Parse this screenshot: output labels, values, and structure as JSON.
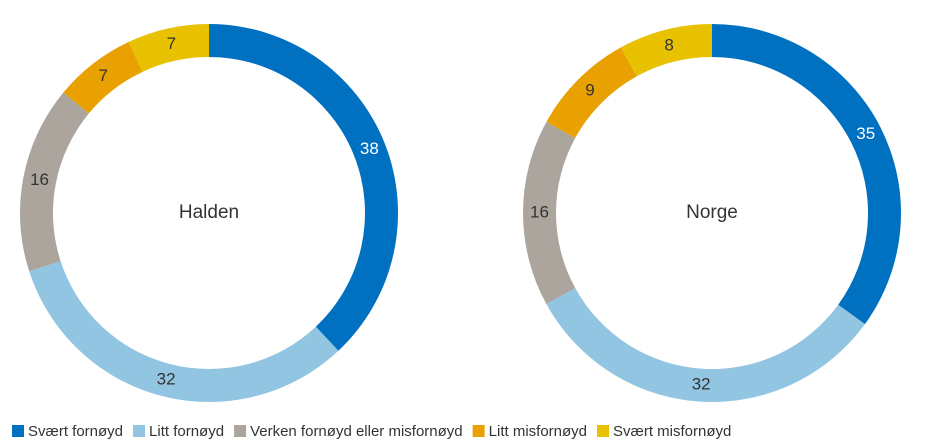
{
  "chart_data": [
    {
      "type": "pie",
      "title": "Halden",
      "values": [
        38,
        32,
        16,
        7,
        7
      ]
    },
    {
      "type": "pie",
      "title": "Norge",
      "values": [
        35,
        32,
        16,
        9,
        8
      ]
    }
  ],
  "legend": {
    "categories": [
      "Svært fornøyd",
      "Litt fornøyd",
      "Verken fornøyd eller misfornøyd",
      "Litt misfornøyd",
      "Svært misfornøyd"
    ],
    "colors": [
      "#0070c0",
      "#92c5e2",
      "#aca59d",
      "#e8a100",
      "#e8c100"
    ]
  }
}
